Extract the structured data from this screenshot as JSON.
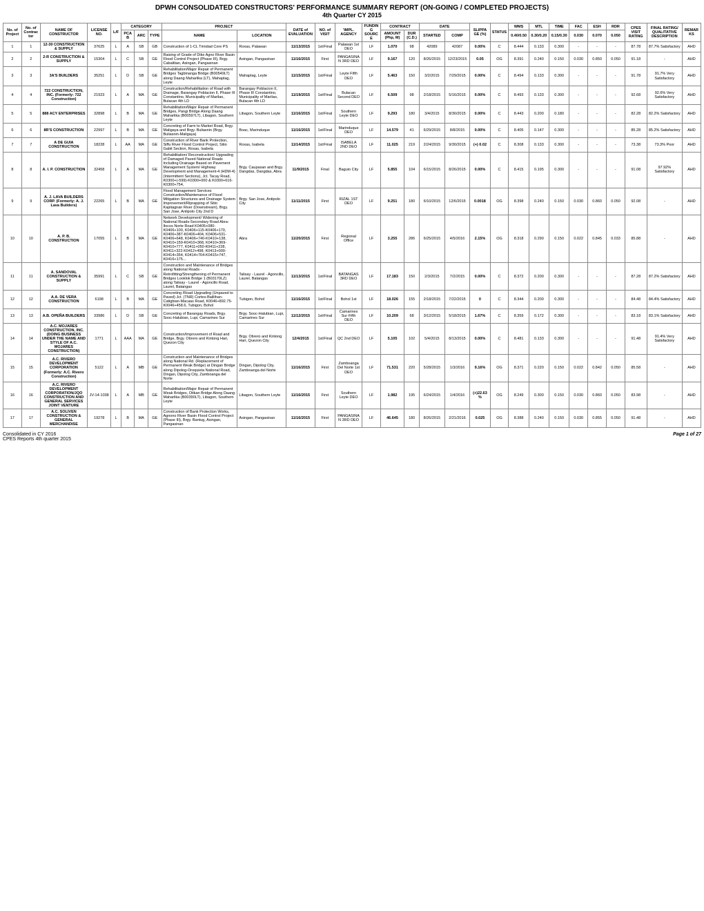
{
  "title1": "DPWH CONSOLIDATED CONSTRUCTORS' PERFORMANCE SUMMARY REPORT (ON-GOING / COMPLETED PROJECTS)",
  "title2": "4th Quarter CY 2015",
  "header": {
    "proj_no": "No. of Project",
    "cont_no": "No. of Contractor",
    "name": "NAME OF CONSTRUCTOR",
    "license": "LICENSE NO.",
    "lf": "L/F",
    "category": "CATEGORY",
    "pcab": "PCAB",
    "arc": "ARC",
    "type": "TYPE",
    "project": "PROJECT",
    "pname": "NAME",
    "location": "LOCATION",
    "date_eval": "DATE of EVALUATION",
    "visit": "NO. of VISIT",
    "impl": "'IMPL. AGENCY",
    "funding": "FUNDING SOURCE",
    "contract": "CONTRACT",
    "amount": "AMOUNT (Php, M)",
    "dur": "DUR (C.D.)",
    "dateh": "DATE",
    "started": "STARTED",
    "comp": "COMP",
    "slippa": "SLIPPA GE (%)",
    "status": "STATUS",
    "wms": "WMS",
    "wms2": "0.40/0.50",
    "mtl": "MTL",
    "mtl2": "0.30/0.20",
    "time": "TIME",
    "time2": "0.15/0.30",
    "fac": "FAC",
    "fac2": "0.030",
    "esh": "ESH",
    "esh2": "0.070",
    "rdr": "RDR",
    "rdr2": "0.050",
    "cpes": "CPES VISIT RATING",
    "final": "FINAL RATING/ QUALITATIVE DESCRIPTION",
    "remarks": "REMARKS"
  },
  "rows": [
    {
      "p": "1",
      "c": "1",
      "name": "12-30 CONSTRUCTION & SUPPLY",
      "lic": "37625",
      "lf": "L",
      "pcab": "A",
      "arc": "SB",
      "type": "GB",
      "pname": "Construction of 1-CL Trinidad Core PS",
      "loc": "Roxas, Palawan",
      "de": "11/13/2015",
      "v": "1st/Final",
      "ag": "Palawan 1st DEO",
      "fs": "LF",
      "amt": "1.070",
      "dur": "98",
      "st": "42089",
      "cp": "42087",
      "sl": "0.00%",
      "stat": "C",
      "wms": "8.444",
      "mtl": "0.133",
      "time": "0.300",
      "fac": "-",
      "esh": "-",
      "rdr": "-",
      "cpes": "87.78",
      "final": "87.7% Satisfactory",
      "rem": "AHD"
    },
    {
      "p": "2",
      "c": "2",
      "name": "2-R CONSTRUCTION & SUPPLY",
      "lic": "15304",
      "lf": "L",
      "pcab": "C",
      "arc": "SB",
      "type": "GE",
      "pname": "Raising of Grade of Dike Agno River Basin Flood Control Project (Phase III), Brgy. Cabalitian, Asingan, Pangasinan",
      "loc": "Asingan, Pangasinan",
      "de": "11/16/2015",
      "v": "First",
      "ag": "PANGASINAN 3RD DEO",
      "fs": "LF",
      "amt": "9.167",
      "dur": "120",
      "st": "8/26/2015",
      "cp": "12/23/2015",
      "sl": "0.05",
      "stat": "OG",
      "wms": "8.391",
      "mtl": "0.240",
      "time": "0.150",
      "fac": "0.030",
      "esh": "0.850",
      "rdr": "0.050",
      "cpes": "91.18",
      "final": "-",
      "rem": "AHD"
    },
    {
      "p": "3",
      "c": "3",
      "name": "3A'S BUILDERS",
      "lic": "35251",
      "lf": "L",
      "pcab": "D",
      "arc": "SB",
      "type": "GE",
      "pname": "Rehabilitation/Major Repair of Permanent Bridges Tagbinanga Bridge (B00549LT) along Daang Maharlika (LT), Mahaplag, Leyte",
      "loc": "Mahaplag, Leyte",
      "de": "11/15/2015",
      "v": "1st/Final",
      "ag": "Leyte Fifth DEO",
      "fs": "LF",
      "amt": "5.463",
      "dur": "150",
      "st": "3/2/2015",
      "cp": "7/29/2015",
      "sl": "0.00%",
      "stat": "C",
      "wms": "8.494",
      "mtl": "0.133",
      "time": "0.300",
      "fac": "-",
      "esh": "-",
      "rdr": "-",
      "cpes": "91.78",
      "final": "91.7% Very Satisfactory",
      "rem": "AHD"
    },
    {
      "p": "4",
      "c": "4",
      "name": "722 CONSTRUCTION, INC. (Formerly: 722 Construction)",
      "lic": "21923",
      "lf": "L",
      "pcab": "A",
      "arc": "MA",
      "type": "GE",
      "pname": "Construction/Rehabilitation of Road with Drainage, Barangay Poblacion II, Phase III Constantino, Municipality of Marilao, Bulacan 4th LD",
      "loc": "Barangay Poblacion II, Phase III Constantino, Municipality of Marilao, Bulacan 4th LD",
      "de": "11/19/2015",
      "v": "1st/Final",
      "ag": "Bulacan Second DEO",
      "fs": "LF",
      "amt": "6.509",
      "dur": "98",
      "st": "2/18/2015",
      "cp": "5/16/2015",
      "sl": "0.00%",
      "stat": "C",
      "wms": "8.493",
      "mtl": "0.133",
      "time": "0.300",
      "fac": "-",
      "esh": "-",
      "rdr": "-",
      "cpes": "92.68",
      "final": "92.6% Very Satisfactory",
      "rem": "AHD"
    },
    {
      "p": "5",
      "c": "5",
      "name": "888 ACY ENTERPRISES",
      "lic": "32898",
      "lf": "L",
      "pcab": "B",
      "arc": "MA",
      "type": "GE",
      "pname": "Rehabilitation/Major Repair of Permanent Bridges, Pangi Bridge Along Daang Maharlika (B00597LT), Libagon, Southern Leyte",
      "loc": "Libagon, Southern Leyte",
      "de": "11/16/2015",
      "v": "1st/Final",
      "ag": "Southern Leyte DEO",
      "fs": "LF",
      "amt": "9.293",
      "dur": "180",
      "st": "3/4/2015",
      "cp": "8/30/2015",
      "sl": "0.00%",
      "stat": "C",
      "wms": "8.443",
      "mtl": "0.200",
      "time": "0.180",
      "fac": "-",
      "esh": "-",
      "rdr": "-",
      "cpes": "82.28",
      "final": "82.2% Satisfactory",
      "rem": "AHD"
    },
    {
      "p": "6",
      "c": "6",
      "name": "8R'S CONSTRUCTION",
      "lic": "22997",
      "lf": "L",
      "pcab": "B",
      "arc": "MA",
      "type": "GE",
      "pname": "Concreting of Farm to Market Road, Brgy. Maligaya and Brgy. Buliasnin (Brgy. Buliasnin-Maligaya)",
      "loc": "Boac, Marinduque",
      "de": "11/16/2015",
      "v": "1st/Final",
      "ag": "Marinduque DEO",
      "fs": "LF",
      "amt": "14.579",
      "dur": "41",
      "st": "6/29/2015",
      "cp": "8/8/2015",
      "sl": "0.00%",
      "stat": "C",
      "wms": "8.405",
      "mtl": "0.147",
      "time": "0.300",
      "fac": "-",
      "esh": "-",
      "rdr": "-",
      "cpes": "85.28",
      "final": "85.2% Satisfactory",
      "rem": "AHD"
    },
    {
      "p": "7",
      "c": "7",
      "name": "A DE GUIA CONSTRUCTION",
      "lic": "18228",
      "lf": "L",
      "pcab": "AA",
      "arc": "MA",
      "type": "GE",
      "pname": "Construction of River Bank Protection, Siffu River Flood Control Project, Sitio Gabit Section, Roxas, Isabela",
      "loc": "Roxas, Isabela",
      "de": "11/14/2015",
      "v": "1st/Final",
      "ag": "ISABELA 2ND DEO",
      "fs": "LF",
      "amt": "11.025",
      "dur": "219",
      "st": "2/24/2015",
      "cp": "9/30/2015",
      "sl": "(+) 0.02",
      "stat": "C",
      "wms": "8.308",
      "mtl": "0.133",
      "time": "0.300",
      "fac": "-",
      "esh": "-",
      "rdr": "-",
      "cpes": "73.38",
      "final": "73.3% Poor",
      "rem": "AHD"
    },
    {
      "p": "8",
      "c": "8",
      "name": "A. I. P. CONSTRUCTION",
      "lic": "32458",
      "lf": "L",
      "pcab": "A",
      "arc": "MA",
      "type": "GE",
      "pname": "Rehabilitation/ Reconstruction/ Upgrading of Damaged Paved National Roads Including Drainage Based on Pavement Management System/ Highway Development and Management-4 (HDM-4) (Intermittent Sections), Jct. Tacay Road, K0300+(-599)-K0300+000 & K0300+616-K0300+754,",
      "loc": "Brgy. Caupasan and Brgy. Dangdas, Dangdas, Abra",
      "de": "11/9/2015",
      "v": "Final",
      "ag": "Baguio City",
      "fs": "LF",
      "amt": "5.855",
      "dur": "104",
      "st": "6/15/2015",
      "cp": "8/26/2015",
      "sl": "0.00%",
      "stat": "C",
      "wms": "8.415",
      "mtl": "0.195",
      "time": "0.300",
      "fac": "-",
      "esh": "-",
      "rdr": "-",
      "cpes": "91.08",
      "final": "97.92% Satisfactory",
      "rem": "AHD"
    },
    {
      "p": "9",
      "c": "9",
      "name": "A. J. LAVA BUILDERS CORP. (Formerly: A. J. Lava Builders)",
      "lic": "22265",
      "lf": "L",
      "pcab": "B",
      "arc": "MA",
      "type": "GE",
      "pname": "Flood Management Services Construction/Maintenance of Flood Mitigation Structures and Drainage System Improvement/Riprapping of Sitio Kapitagnan River (Downstream), Brgy. San Jose, Antipolo City 2nd D",
      "loc": "Brgy. San Jose, Antipolo City",
      "de": "11/11/2015",
      "v": "First",
      "ag": "RIZAL 1ST DEO",
      "fs": "LF",
      "amt": "9.251",
      "dur": "180",
      "st": "6/10/2015",
      "cp": "12/6/2015",
      "sl": "0.0018",
      "stat": "OG",
      "wms": "8.398",
      "mtl": "0.240",
      "time": "0.150",
      "fac": "0.030",
      "esh": "0.860",
      "rdr": "0.050",
      "cpes": "92.08",
      "final": "-",
      "rem": "AHD"
    },
    {
      "p": "10",
      "c": "10",
      "name": "A. P. B. CONSTRUCTION",
      "lic": "17055",
      "lf": "L",
      "pcab": "B",
      "arc": "MA",
      "type": "GE",
      "pname": "Network Development/ Widening of National Roads-Secondary Road Abra-Ilocos Norte Road K0405+080-K0406+100, K0406+115-K0406+170, K0406+387-K0406+404, K0406+531-K0406+648, K0406+740-K0410+138, K0410+159-K0410+368, K0410+369-K0410+777, K0411+050-K0411+228, K0411+322-K0412+498, K0413+000-K0414+354, K0414+764-K0415+747, K0416+175...",
      "loc": "Abra",
      "de": "11/20/2015",
      "v": "First",
      "ag": "Regional Office",
      "fs": "LF",
      "amt": "3.255",
      "dur": "286",
      "st": "6/25/2015",
      "cp": "4/5/2016",
      "sl": "2.15%",
      "stat": "OG",
      "wms": "8.318",
      "mtl": "0.290",
      "time": "0.150",
      "fac": "0.022",
      "esh": "0.845",
      "rdr": "0.033",
      "cpes": "85.88",
      "final": "-",
      "rem": "AHD"
    },
    {
      "p": "11",
      "c": "11",
      "name": "A. SANDOVAL CONSTRUCTION & SUPPLY",
      "lic": "35991",
      "lf": "L",
      "pcab": "C",
      "arc": "SB",
      "type": "GE",
      "pname": "Construction and Maintenance of Bridges along National Roads - Retrofitting/Strengthening of Permanent Bridges Looklok Bridge 1 (B03170LZ) along Talisay - Laurel - Agoncillo Road, Laurel, Batangas",
      "loc": "Talisay - Laurel - Agoncillo, Laurel, Batangas",
      "de": "11/13/2015",
      "v": "1st/Final",
      "ag": "BATANGAS 3RD DEO",
      "fs": "LF",
      "amt": "17.183",
      "dur": "150",
      "st": "2/3/2015",
      "cp": "7/2/2015",
      "sl": "0.00%",
      "stat": "C",
      "wms": "8.372",
      "mtl": "0.200",
      "time": "0.300",
      "fac": "-",
      "esh": "-",
      "rdr": "-",
      "cpes": "87.28",
      "final": "87.2% Satisfactory",
      "rem": "AHD"
    },
    {
      "p": "12",
      "c": "12",
      "name": "A.A. DE VERA CONSTRUCTION",
      "lic": "6198",
      "lf": "L",
      "pcab": "B",
      "arc": "MA",
      "type": "GE",
      "pname": "Concreting /Road Upgrading (Unpaved to Paved) Jct. (TNR) Cortes-Balilihan-Catigbian-Macaas Road, K0046+892.75-K0046+458.6, Tubigon, Bohol",
      "loc": "Tubigon, Bohol",
      "de": "11/16/2015",
      "v": "1st/Final",
      "ag": "Bohol 1st",
      "fs": "LF",
      "amt": "18.026",
      "dur": "155",
      "st": "2/18/2015",
      "cp": "7/22/2015",
      "sl": "0",
      "stat": "C",
      "wms": "8.344",
      "mtl": "0.200",
      "time": "0.300",
      "fac": "-",
      "esh": "-",
      "rdr": "-",
      "cpes": "84.48",
      "final": "84.4% Satisfactory",
      "rem": "AHD"
    },
    {
      "p": "13",
      "c": "13",
      "name": "A.B. OPEÑA BUILDERS",
      "lic": "33986",
      "lf": "L",
      "pcab": "D",
      "arc": "SB",
      "type": "GE",
      "pname": "Concreting of Barangay Roads, Brgy. Sooc-Halubian, Lupi, Camarines Sur",
      "loc": "Brgy. Sooc-Halubian, Lupi, Camarines Sur",
      "de": "11/12/2015",
      "v": "1st/Final",
      "ag": "Camarines Sur Fifth DEO",
      "fs": "LF",
      "amt": "10.209",
      "dur": "68",
      "st": "3/12/2015",
      "cp": "5/18/2015",
      "sl": "1.67%",
      "stat": "C",
      "wms": "8.359",
      "mtl": "0.172",
      "time": "0.300",
      "fac": "-",
      "esh": "-",
      "rdr": "-",
      "cpes": "83.18",
      "final": "83.1% Satisfactory",
      "rem": "AHD"
    },
    {
      "p": "14",
      "c": "14",
      "name": "A.C. MOJARES CONSTRUCTION, INC. (DOING BUSINESS UNDER THE NAME AND STYLE OF A.C. MOJARES CONSTRUCTION)",
      "lic": "1771",
      "lf": "L",
      "pcab": "AAA",
      "arc": "MA",
      "type": "GE",
      "pname": "Construction/Improvement of Road and Bridge, Brgy. Obrero and Kintong Hari, Quezon City",
      "loc": "Brgy. Obrero and Kintong Hari, Quezon City",
      "de": "12/4/2015",
      "v": "1st/Final",
      "ag": "QC 2nd DEO",
      "fs": "LF",
      "amt": "5.105",
      "dur": "102",
      "st": "5/4/2015",
      "cp": "8/13/2015",
      "sl": "0.00%",
      "stat": "C",
      "wms": "8.481",
      "mtl": "0.133",
      "time": "0.300",
      "fac": "-",
      "esh": "-",
      "rdr": "-",
      "cpes": "91.48",
      "final": "91.4% Very Satisfactory",
      "rem": "AHD"
    },
    {
      "p": "15",
      "c": "15",
      "name": "A.C. RIVERO DEVELOPMENT CORPORATION (Formerly: A.C. Rivero Construction)",
      "lic": "5122",
      "lf": "L",
      "pcab": "A",
      "arc": "MB",
      "type": "GE",
      "pname": "Construction and Maintenance of Bridges along National Rd. (Replacement of Permanent Weak Bridge) at Dingan Bridge along Dipolog-Oroquieta National Road, Dingan, Dipolog City, Zamboanga del Norte",
      "loc": "Dingan, Dipolog City, Zamboanga del Norte",
      "de": "11/16/2015",
      "v": "First",
      "ag": "Zamboanga Del Norte 1st DEO",
      "fs": "LF",
      "amt": "71.531",
      "dur": "220",
      "st": "5/28/2015",
      "cp": "1/3/2016",
      "sl": "9.16%",
      "stat": "OG",
      "wms": "8.371",
      "mtl": "0.220",
      "time": "0.150",
      "fac": "0.022",
      "esh": "0.842",
      "rdr": "0.050",
      "cpes": "85.58",
      "final": "-",
      "rem": "AHD"
    },
    {
      "p": "16",
      "c": "16",
      "name": "A.C. RIVERO DEVELOPMENT CORPORATION/JQO CONSTRUCTION AND GENERAL SERVICES JOINT VENTURE",
      "lic": "JV-14-1038",
      "lf": "L",
      "pcab": "A",
      "arc": "MB",
      "type": "GE",
      "pname": "Rehabilitation/Major Repair of Permanent Weak Bridges, Otikan Bridge Along Daang Maharlika (B00390LT), Libagon, Southern Leyte",
      "loc": "Libagon, Southern Leyte",
      "de": "11/16/2015",
      "v": "First",
      "ag": "Southern Leyte DEO",
      "fs": "LF",
      "amt": "1.982",
      "dur": "195",
      "st": "6/24/2015",
      "cp": "1/4/2016",
      "sl": "(+)22.63%",
      "stat": "OG",
      "wms": "8.249",
      "mtl": "0.300",
      "time": "0.150",
      "fac": "0.030",
      "esh": "0.860",
      "rdr": "0.050",
      "cpes": "83.98",
      "final": "-",
      "rem": "AHD"
    },
    {
      "p": "17",
      "c": "17",
      "name": "A.C. SOLIVEN CONSTRUCTION & GENERAL MERCHANDISE",
      "lic": "19278",
      "lf": "L",
      "pcab": "B",
      "arc": "MA",
      "type": "GE",
      "pname": "Construction of Bank Protection Works, Agnono River Basin Flood Control Project (Phase III), Brgy. Bantug, Asingan, Pangasinan",
      "loc": "Asingan, Pangasinan",
      "de": "11/16/2015",
      "v": "First",
      "ag": "PANGASINAN 3RD DEO",
      "fs": "LF",
      "amt": "46.645",
      "dur": "180",
      "st": "8/26/2015",
      "cp": "2/21/2016",
      "sl": "0.025",
      "stat": "OG",
      "wms": "8.388",
      "mtl": "0.240",
      "time": "0.150",
      "fac": "0.030",
      "esh": "0.855",
      "rdr": "0.050",
      "cpes": "91.48",
      "final": "-",
      "rem": "AHD"
    }
  ],
  "footer_left1": "Consolidated in CY 2016",
  "footer_left2": "CPES Reports 4th quarter 2015",
  "footer_right": "Page 1 of 27"
}
